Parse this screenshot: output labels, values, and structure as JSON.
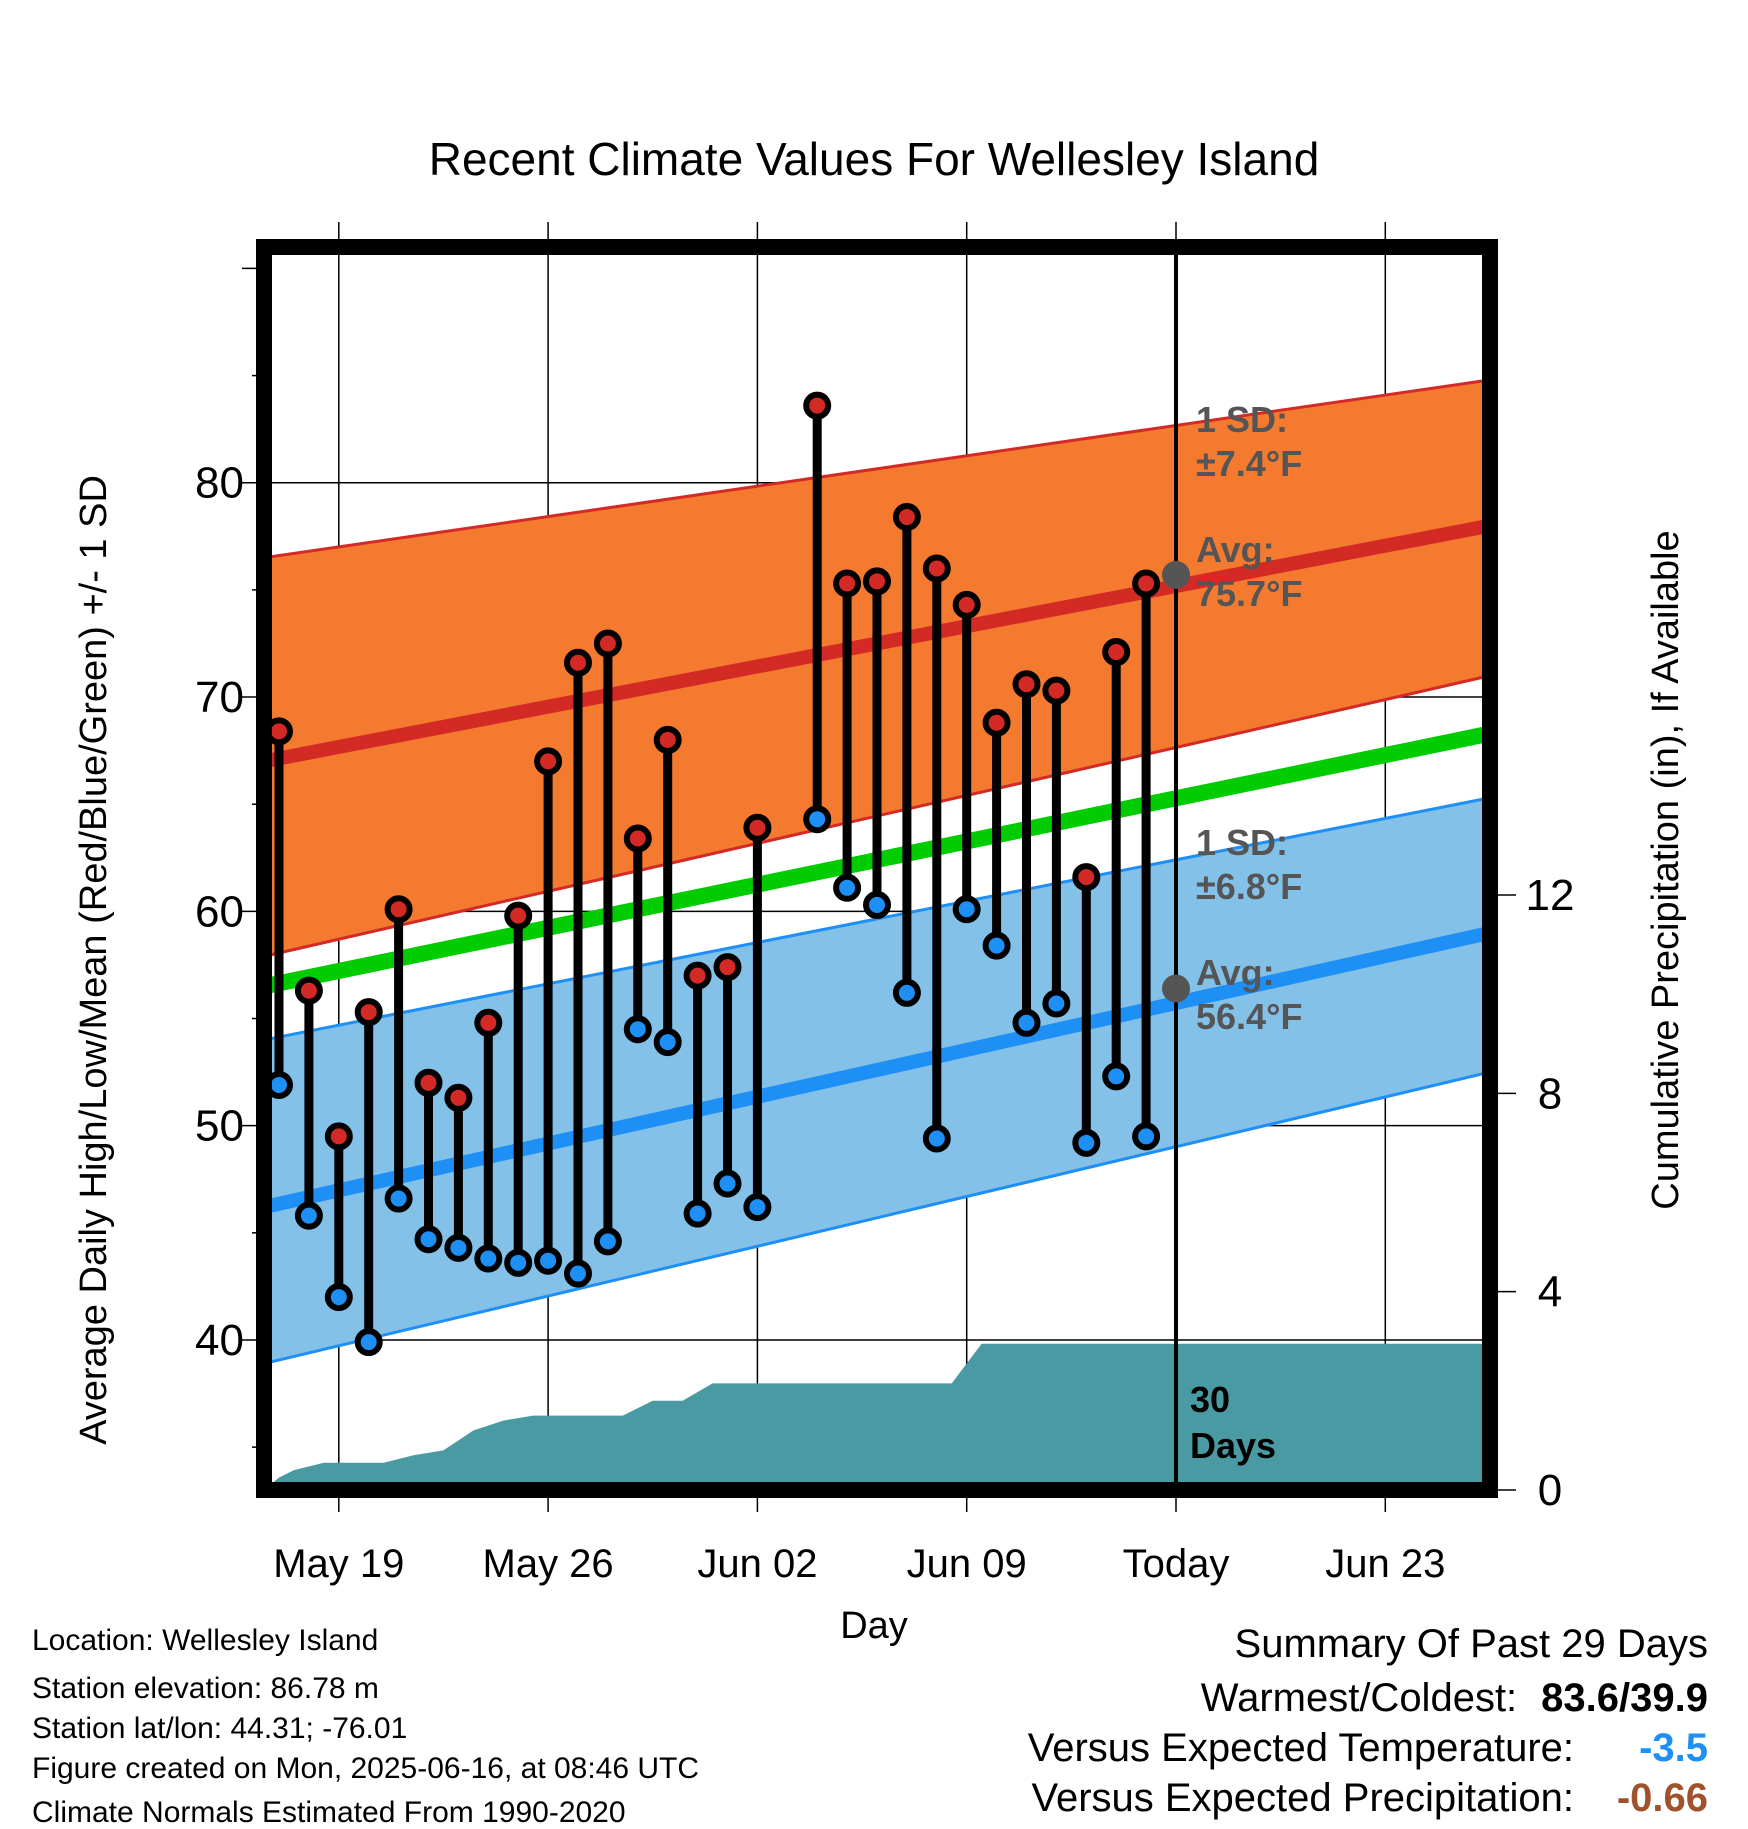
{
  "chart_data": {
    "type": "line",
    "title": "Recent Climate Values For Wellesley Island",
    "xlabel": "Day",
    "ylabel": "Average Daily High/Low/Mean (Red/Blue/Green) +/- 1 SD",
    "y2label": "Cumulative Precipitation (in), If Available",
    "x_ticks": [
      "May 19",
      "May 26",
      "Jun 02",
      "Jun 09",
      "Today",
      "Jun 23"
    ],
    "x_tick_day_index": [
      3,
      10,
      17,
      24,
      31,
      38
    ],
    "x_range_day_index": [
      1,
      41
    ],
    "ylim": [
      33,
      91
    ],
    "y_ticks": [
      40,
      50,
      60,
      70,
      80
    ],
    "y2lim": [
      0,
      16
    ],
    "y2_ticks": [
      0,
      4,
      8,
      12
    ],
    "today_index": 31,
    "grid": true,
    "high_low": {
      "day_index": [
        1,
        2,
        3,
        4,
        5,
        6,
        7,
        8,
        9,
        10,
        11,
        12,
        13,
        14,
        15,
        16,
        17,
        19,
        20,
        21,
        22,
        23,
        24,
        25,
        26,
        27,
        28,
        29,
        30
      ],
      "high": [
        68.4,
        56.3,
        49.5,
        55.3,
        60.1,
        52.0,
        51.3,
        54.8,
        59.8,
        67.0,
        71.6,
        72.5,
        63.4,
        68.0,
        57.0,
        57.4,
        63.9,
        83.6,
        75.3,
        75.4,
        78.4,
        76.0,
        74.3,
        68.8,
        70.6,
        70.3,
        61.6,
        72.1,
        75.3
      ],
      "low": [
        51.9,
        45.8,
        42.0,
        39.9,
        46.6,
        44.7,
        44.3,
        43.8,
        43.6,
        43.7,
        43.1,
        44.6,
        54.5,
        53.9,
        45.9,
        47.3,
        46.2,
        64.3,
        61.1,
        60.3,
        56.2,
        49.4,
        60.1,
        58.4,
        54.8,
        55.7,
        49.2,
        52.3,
        49.5
      ]
    },
    "normals": {
      "day_index": [
        1,
        41
      ],
      "avg_high": [
        67.0,
        78.0
      ],
      "avg_high_sd_upper": [
        76.5,
        84.8
      ],
      "avg_high_sd_lower": [
        57.9,
        71.0
      ],
      "avg_mean": [
        56.5,
        68.3
      ],
      "avg_low": [
        46.2,
        59.0
      ],
      "avg_low_sd_upper": [
        54.0,
        65.3
      ],
      "avg_low_sd_lower": [
        38.9,
        52.5
      ]
    },
    "cumulative_precip": {
      "day_index": [
        1,
        1.5,
        2,
        3,
        4,
        5,
        6,
        7,
        8,
        9,
        10,
        11,
        12,
        13,
        14,
        15,
        16,
        17,
        18,
        19,
        20,
        21,
        22,
        23,
        24,
        25,
        26,
        27,
        28,
        29,
        30,
        31,
        41
      ],
      "value": [
        0.0,
        0.25,
        0.4,
        0.55,
        0.55,
        0.55,
        0.7,
        0.8,
        1.2,
        1.4,
        1.5,
        1.5,
        1.5,
        1.5,
        1.8,
        1.8,
        2.15,
        2.15,
        2.15,
        2.15,
        2.15,
        2.15,
        2.15,
        2.15,
        2.15,
        2.95,
        2.95,
        2.95,
        2.95,
        2.95,
        2.95,
        2.95,
        2.95
      ]
    },
    "annotations": {
      "high_sd_label": "1 SD:",
      "high_sd_value": "±7.4°F",
      "high_avg_label": "Avg:",
      "high_avg_value": "75.7°F",
      "high_avg_today": 75.7,
      "low_sd_label": "1 SD:",
      "low_sd_value": "±6.8°F",
      "low_avg_label": "Avg:",
      "low_avg_value": "56.4°F",
      "low_avg_today": 56.4,
      "days_line1": "30",
      "days_line2": "Days"
    },
    "colors": {
      "high_band": "#f47a30",
      "high_line": "#d42a26",
      "low_band": "#84c1e8",
      "low_line": "#1e8ff5",
      "mean_line": "#00cc00",
      "precip": "#4a9aa3",
      "high_dot": "#d42a26",
      "low_dot": "#1e8ff5",
      "annotation": "#555555",
      "today_marker": "#555555"
    }
  },
  "info": {
    "location": "Location: Wellesley Island",
    "elevation": "Station elevation: 86.78 m",
    "latlon": "Station lat/lon: 44.31; -76.01",
    "created": "Figure created on Mon, 2025-06-16, at 08:46 UTC",
    "normals": "Climate Normals Estimated From 1990-2020"
  },
  "summary": {
    "title": "Summary Of Past 29 Days",
    "warm_cold_label": "Warmest/Coldest:",
    "warm_cold_value": "83.6/39.9",
    "temp_label": "Versus Expected Temperature:",
    "temp_value": "-3.5",
    "temp_color": "#1e8ff5",
    "precip_label": "Versus Expected Precipitation:",
    "precip_value": "-0.66",
    "precip_color": "#a0522d"
  }
}
